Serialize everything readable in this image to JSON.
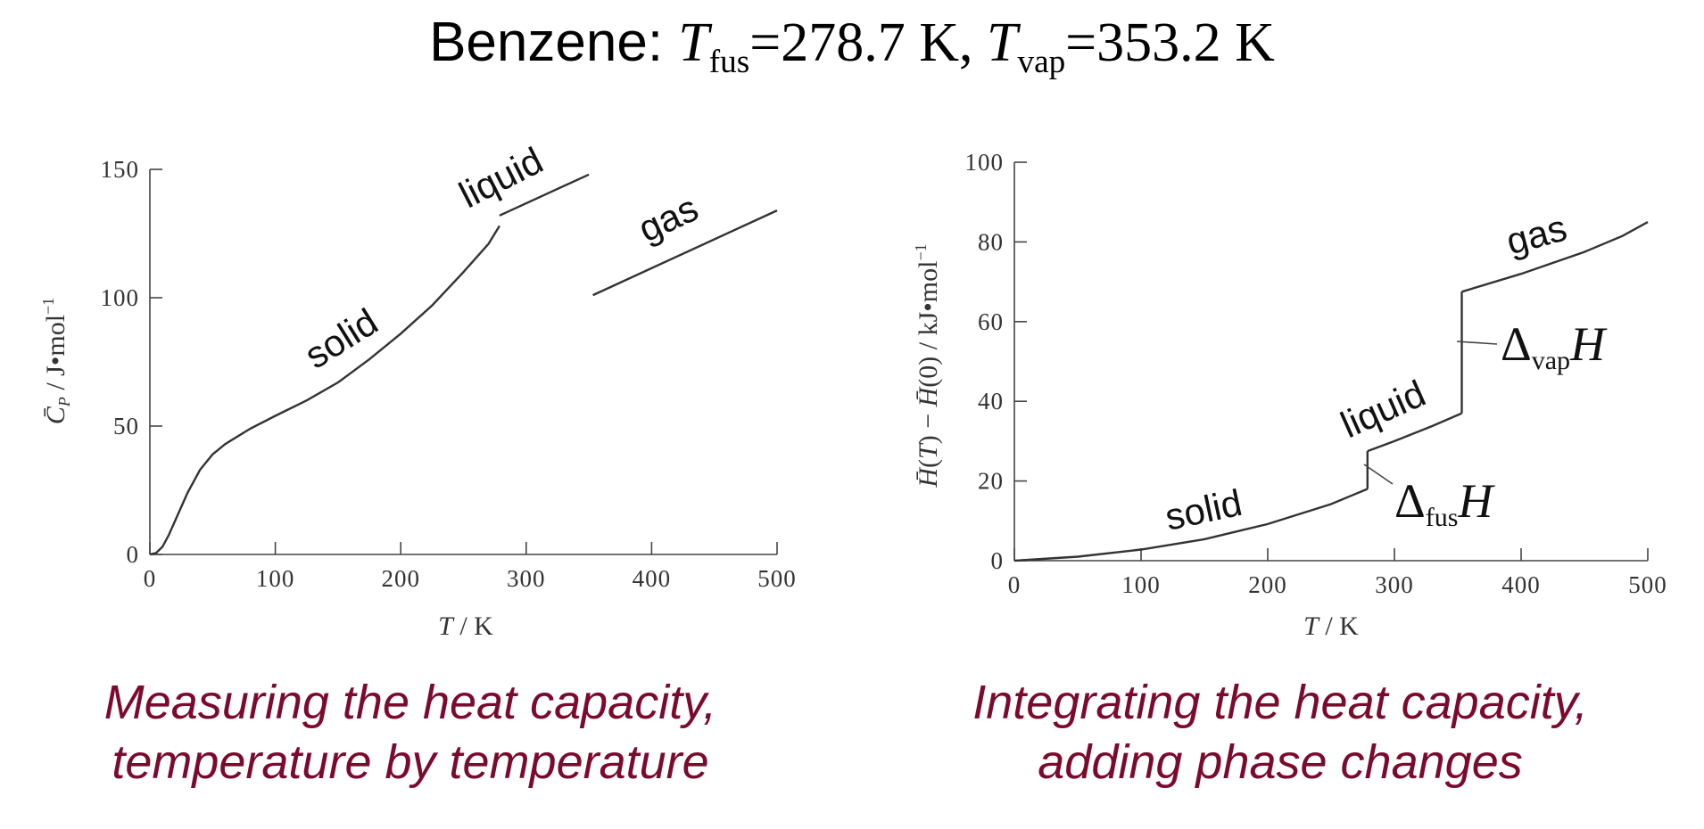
{
  "title": {
    "prefix": "Benzene: ",
    "T": "T",
    "fus_sub": "fus",
    "fus_value": "=278.7 K, ",
    "vap_sub": "vap",
    "vap_value": "=353.2 K"
  },
  "captions": {
    "left": [
      "Measuring the heat capacity,",
      "temperature by temperature"
    ],
    "right": [
      "Integrating the heat capacity,",
      "adding phase changes"
    ]
  },
  "colors": {
    "caption": "#7b0a2d",
    "curve": "#333333",
    "axis": "#444444"
  },
  "chart_data": [
    {
      "type": "line",
      "xlabel": "T / K",
      "ylabel": "C̄P / J•mol⁻¹",
      "xlim": [
        0,
        500
      ],
      "ylim": [
        0,
        150
      ],
      "xticks": [
        "0",
        "100",
        "200",
        "300",
        "400",
        "500"
      ],
      "yticks": [
        "0",
        "50",
        "100",
        "150"
      ],
      "grid": false,
      "region_labels": [
        "solid",
        "liquid",
        "gas"
      ],
      "series": [
        {
          "name": "solid",
          "x": [
            0,
            5,
            10,
            15,
            20,
            30,
            40,
            50,
            60,
            80,
            100,
            125,
            150,
            175,
            200,
            225,
            250,
            270,
            278.7
          ],
          "y": [
            0,
            0.6,
            3,
            7.5,
            13,
            24,
            33,
            39,
            43,
            49,
            54,
            60,
            67,
            76,
            86,
            97,
            110,
            121,
            128
          ]
        },
        {
          "name": "liquid",
          "x": [
            278.7,
            350
          ],
          "y": [
            132,
            148
          ]
        },
        {
          "name": "gas",
          "x": [
            353.2,
            500
          ],
          "y": [
            101,
            134
          ]
        }
      ]
    },
    {
      "type": "line",
      "xlabel": "T / K",
      "ylabel": "H̄(T) − H̄(0) / kJ•mol⁻¹",
      "xlim": [
        0,
        500
      ],
      "ylim": [
        0,
        100
      ],
      "xticks": [
        "0",
        "100",
        "200",
        "300",
        "400",
        "500"
      ],
      "yticks": [
        "0",
        "20",
        "40",
        "60",
        "80",
        "100"
      ],
      "grid": false,
      "region_labels": [
        "solid",
        "liquid",
        "gas"
      ],
      "annotations": [
        {
          "delta": "Δ",
          "sub": "fus",
          "var": "H",
          "x": 278.7,
          "y": 22
        },
        {
          "delta": "Δ",
          "sub": "vap",
          "var": "H",
          "x": 353.2,
          "y": 53
        }
      ],
      "series": [
        {
          "name": "solid",
          "x": [
            0,
            50,
            100,
            150,
            200,
            250,
            278.7
          ],
          "y": [
            0,
            1,
            2.8,
            5.4,
            9.2,
            14.2,
            18
          ]
        },
        {
          "name": "fusion",
          "x": [
            278.7,
            278.7
          ],
          "y": [
            18,
            27.5
          ]
        },
        {
          "name": "liquid",
          "x": [
            278.7,
            300,
            330,
            353.2
          ],
          "y": [
            27.5,
            30,
            33.8,
            37
          ]
        },
        {
          "name": "vaporization",
          "x": [
            353.2,
            353.2
          ],
          "y": [
            37,
            67.5
          ]
        },
        {
          "name": "gas",
          "x": [
            353.2,
            400,
            450,
            480,
            500
          ],
          "y": [
            67.5,
            72,
            77.5,
            81.5,
            85
          ]
        }
      ]
    }
  ]
}
